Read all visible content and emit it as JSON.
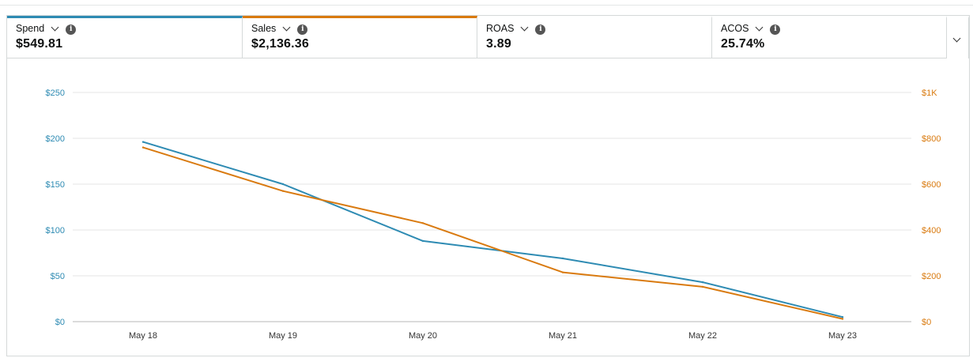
{
  "metrics": [
    {
      "label": "Spend",
      "value": "$549.81"
    },
    {
      "label": "Sales",
      "value": "$2,136.36"
    },
    {
      "label": "ROAS",
      "value": "3.89"
    },
    {
      "label": "ACOS",
      "value": "25.74%"
    }
  ],
  "icons": {
    "dropdown": "chevron-down-icon",
    "info": "info-icon",
    "info_glyph": "i"
  },
  "colors": {
    "spend": "#2e8bb3",
    "sales": "#d97a0f",
    "grid": "#e6e6e6"
  },
  "chart_data": {
    "type": "line",
    "x": [
      "May 18",
      "May 19",
      "May 20",
      "May 21",
      "May 22",
      "May 23"
    ],
    "series": [
      {
        "key": "spend",
        "values": [
          196,
          150,
          88,
          69,
          43,
          5
        ]
      },
      {
        "key": "sales",
        "values": [
          760,
          570,
          430,
          215,
          152,
          12
        ]
      }
    ],
    "y_left": {
      "ticks": [
        "$0",
        "$50",
        "$100",
        "$150",
        "$200",
        "$250"
      ],
      "values": [
        0,
        50,
        100,
        150,
        200,
        250
      ],
      "range": [
        0,
        250
      ]
    },
    "y_right": {
      "ticks": [
        "$0",
        "$200",
        "$400",
        "$600",
        "$800",
        "$1K"
      ],
      "values": [
        0,
        200,
        400,
        600,
        800,
        1000
      ],
      "range": [
        0,
        1000
      ]
    },
    "grid": true
  }
}
